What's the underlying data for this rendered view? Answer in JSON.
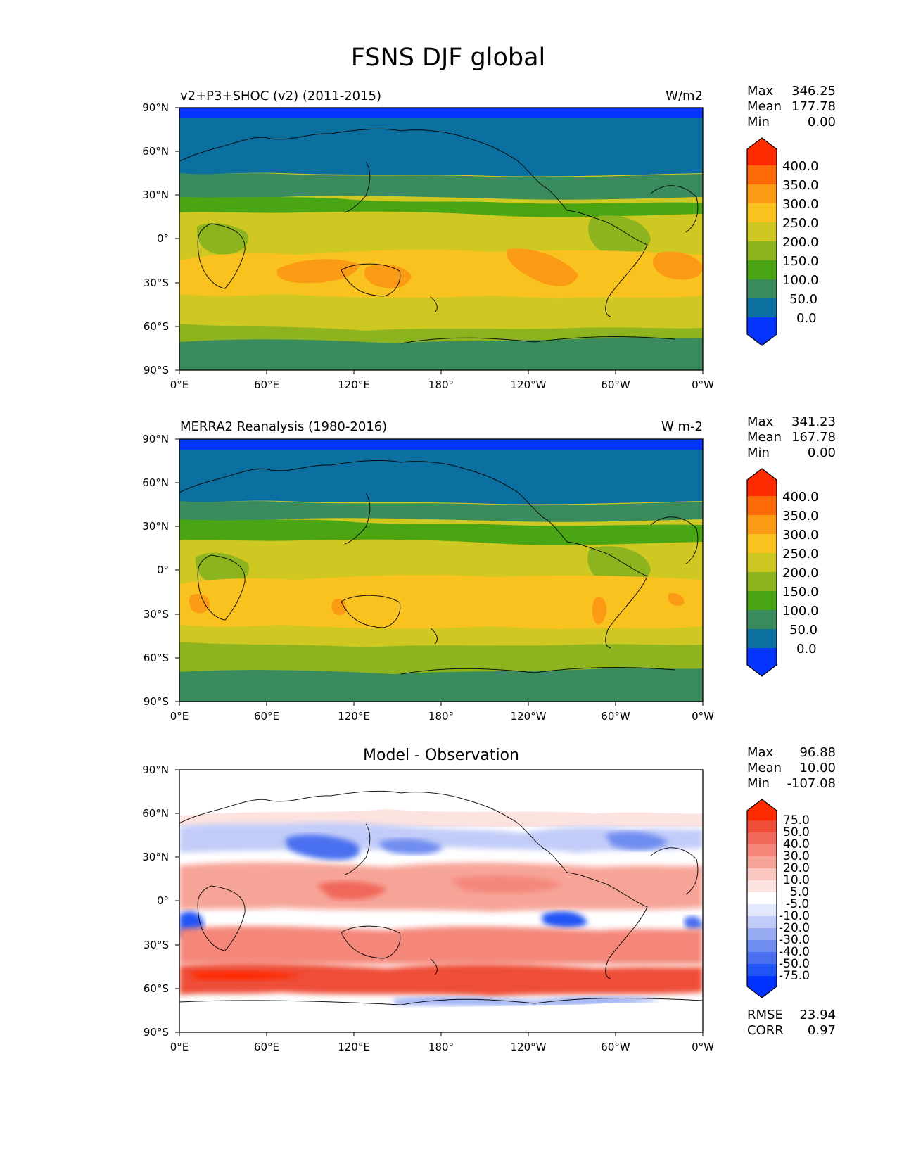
{
  "title": "FSNS DJF global",
  "colors": {
    "levels": [
      "#0534ff",
      "#0b6fa0",
      "#3a8b5e",
      "#4aa514",
      "#8db41e",
      "#cfc822",
      "#fac21e",
      "#fb9a14",
      "#fd6a0a",
      "#ff2b00"
    ],
    "diff": [
      "#0032ff",
      "#2255f5",
      "#4a70f0",
      "#6f8df0",
      "#98acf3",
      "#c2ccf8",
      "#e3e8fc",
      "#ffffff",
      "#fde3e0",
      "#fbc8c1",
      "#f7a498",
      "#f4877a",
      "#f0685a",
      "#ee4d37",
      "#ff2b00"
    ],
    "land": "#000000"
  },
  "axes": {
    "lat_ticks": [
      "90°N",
      "60°N",
      "30°N",
      "0°",
      "30°S",
      "60°S",
      "90°S"
    ],
    "lon_ticks": [
      "0°E",
      "60°E",
      "120°E",
      "180°",
      "120°W",
      "60°W",
      "0°W"
    ]
  },
  "panels": [
    {
      "label": "v2+P3+SHOC (v2) (2011-2015)",
      "units": "W/m2",
      "stats": [
        {
          "name": "Max",
          "value": "346.25"
        },
        {
          "name": "Mean",
          "value": "177.78"
        },
        {
          "name": "Min",
          "value": "0.00"
        }
      ],
      "colorbar_labels": [
        "400.0",
        "350.0",
        "300.0",
        "250.0",
        "200.0",
        "150.0",
        "100.0",
        "50.0",
        "0.0"
      ]
    },
    {
      "label": "MERRA2 Reanalysis (1980-2016)",
      "units": "W m-2",
      "stats": [
        {
          "name": "Max",
          "value": "341.23"
        },
        {
          "name": "Mean",
          "value": "167.78"
        },
        {
          "name": "Min",
          "value": "0.00"
        }
      ],
      "colorbar_labels": [
        "400.0",
        "350.0",
        "300.0",
        "250.0",
        "200.0",
        "150.0",
        "100.0",
        "50.0",
        "0.0"
      ]
    },
    {
      "label": "Model - Observation",
      "units": "",
      "stats": [
        {
          "name": "Max",
          "value": "96.88"
        },
        {
          "name": "Mean",
          "value": "10.00"
        },
        {
          "name": "Min",
          "value": "-107.08"
        }
      ],
      "colorbar_labels": [
        "75.0",
        "50.0",
        "40.0",
        "30.0",
        "20.0",
        "10.0",
        "5.0",
        "-5.0",
        "-10.0",
        "-20.0",
        "-30.0",
        "-40.0",
        "-50.0",
        "-75.0"
      ],
      "metrics": [
        {
          "name": "RMSE",
          "value": "23.94"
        },
        {
          "name": "CORR",
          "value": "0.97"
        }
      ]
    }
  ]
}
